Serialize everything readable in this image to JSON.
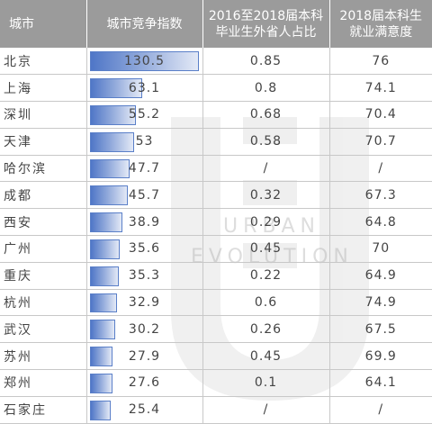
{
  "headers": {
    "city": "城市",
    "index": "城市竞争指数",
    "ratio_line1": "2016至2018届本科",
    "ratio_line2": "毕业生外省人占比",
    "satisfaction_line1": "2018届本科生",
    "satisfaction_line2": "就业满意度"
  },
  "index_max": 130.5,
  "bar_color": "#4f76c7",
  "header_bg": "#9b9b9b",
  "rows": [
    {
      "city": "北京",
      "index": "130.5",
      "ratio": "0.85",
      "satisfaction": "76"
    },
    {
      "city": "上海",
      "index": "63.1",
      "ratio": "0.8",
      "satisfaction": "74.1"
    },
    {
      "city": "深圳",
      "index": "55.2",
      "ratio": "0.68",
      "satisfaction": "70.4"
    },
    {
      "city": "天津",
      "index": "53",
      "ratio": "0.58",
      "satisfaction": "70.7"
    },
    {
      "city": "哈尔滨",
      "index": "47.7",
      "ratio": "/",
      "satisfaction": "/"
    },
    {
      "city": "成都",
      "index": "45.7",
      "ratio": "0.32",
      "satisfaction": "67.3"
    },
    {
      "city": "西安",
      "index": "38.9",
      "ratio": "0.29",
      "satisfaction": "64.8"
    },
    {
      "city": "广州",
      "index": "35.6",
      "ratio": "0.45",
      "satisfaction": "70"
    },
    {
      "city": "重庆",
      "index": "35.3",
      "ratio": "0.22",
      "satisfaction": "64.9"
    },
    {
      "city": "杭州",
      "index": "32.9",
      "ratio": "0.6",
      "satisfaction": "74.9"
    },
    {
      "city": "武汉",
      "index": "30.2",
      "ratio": "0.26",
      "satisfaction": "67.5"
    },
    {
      "city": "苏州",
      "index": "27.9",
      "ratio": "0.45",
      "satisfaction": "69.9"
    },
    {
      "city": "郑州",
      "index": "27.6",
      "ratio": "0.1",
      "satisfaction": "64.1"
    },
    {
      "city": "石家庄",
      "index": "25.4",
      "ratio": "/",
      "satisfaction": "/"
    }
  ],
  "watermark": {
    "line1": "URBAN",
    "line2": "EVOLUTION"
  }
}
